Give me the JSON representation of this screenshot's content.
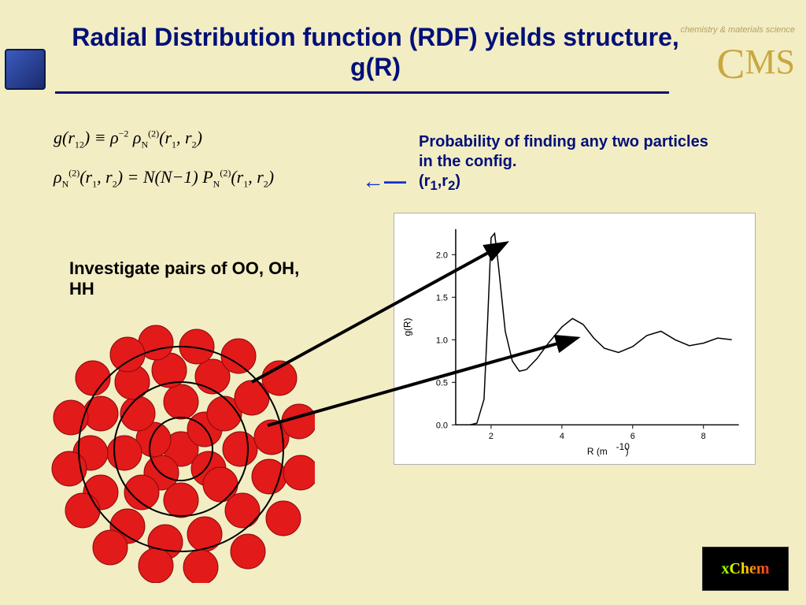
{
  "title": "Radial Distribution function (RDF) yields structure, g(R)",
  "logo_subtitle": "chemistry & materials science",
  "logo_main_c": "C",
  "logo_main_ms": "MS",
  "equation1": "g(r₁₂) ≡ ρ⁻² ρ_N^(2)(r₁, r₂)",
  "equation2": "ρ_N^(2)(r₁, r₂) = N(N−1) P_N^(2)(r₁, r₂)",
  "probability_text": "Probability of finding any two particles in the config.",
  "probability_vars": "(r₁, r₂)",
  "pairs_text": "Investigate pairs of OO, OH, HH",
  "xchem_label": "xChem",
  "chart": {
    "type": "line",
    "xlabel": "R (m⁻¹⁰)",
    "ylabel": "g(R)",
    "xlim": [
      1,
      9
    ],
    "ylim": [
      0,
      2.3
    ],
    "xticks": [
      2,
      4,
      6,
      8
    ],
    "yticks": [
      0.0,
      0.5,
      1.0,
      1.5,
      2.0
    ],
    "line_color": "#000000",
    "line_width": 1.5,
    "background_color": "#ffffff",
    "border_color": "#b0b0b0",
    "tick_fontsize": 11,
    "label_fontsize": 12,
    "data_x": [
      1.0,
      1.4,
      1.6,
      1.8,
      1.9,
      2.0,
      2.1,
      2.2,
      2.4,
      2.6,
      2.8,
      3.0,
      3.3,
      3.6,
      4.0,
      4.3,
      4.6,
      4.9,
      5.2,
      5.6,
      6.0,
      6.4,
      6.8,
      7.2,
      7.6,
      8.0,
      8.4,
      8.8
    ],
    "data_y": [
      0.0,
      0.0,
      0.02,
      0.3,
      1.2,
      2.2,
      2.25,
      1.9,
      1.1,
      0.75,
      0.63,
      0.65,
      0.78,
      0.95,
      1.15,
      1.25,
      1.18,
      1.02,
      0.9,
      0.85,
      0.92,
      1.05,
      1.1,
      1.0,
      0.93,
      0.96,
      1.02,
      1.0
    ]
  },
  "particle_diagram": {
    "shell_radii": [
      40,
      85,
      130
    ],
    "shell_stroke": "#000000",
    "shell_stroke_width": 2,
    "particle_radius": 22,
    "particle_fill": "#e21a1a",
    "particle_stroke": "#8a0a0a",
    "particles": [
      [
        170,
        170
      ],
      [
        200,
        145
      ],
      [
        145,
        200
      ],
      [
        135,
        158
      ],
      [
        205,
        195
      ],
      [
        170,
        110
      ],
      [
        225,
        125
      ],
      [
        245,
        170
      ],
      [
        220,
        215
      ],
      [
        170,
        235
      ],
      [
        120,
        225
      ],
      [
        98,
        175
      ],
      [
        115,
        125
      ],
      [
        155,
        70
      ],
      [
        210,
        78
      ],
      [
        260,
        105
      ],
      [
        285,
        155
      ],
      [
        282,
        205
      ],
      [
        248,
        248
      ],
      [
        200,
        278
      ],
      [
        150,
        288
      ],
      [
        102,
        268
      ],
      [
        68,
        225
      ],
      [
        55,
        175
      ],
      [
        68,
        125
      ],
      [
        108,
        85
      ],
      [
        138,
        35
      ],
      [
        190,
        40
      ],
      [
        243,
        52
      ],
      [
        295,
        80
      ],
      [
        320,
        135
      ],
      [
        322,
        200
      ],
      [
        300,
        258
      ],
      [
        255,
        300
      ],
      [
        195,
        320
      ],
      [
        138,
        318
      ],
      [
        80,
        295
      ],
      [
        45,
        248
      ],
      [
        28,
        195
      ],
      [
        30,
        130
      ],
      [
        58,
        80
      ],
      [
        102,
        50
      ]
    ]
  },
  "pointer_arrows": {
    "color": "#000000",
    "width": 4,
    "arrows": [
      {
        "from": [
          320,
          485
        ],
        "to": [
          640,
          310
        ]
      },
      {
        "from": [
          340,
          540
        ],
        "to": [
          730,
          430
        ]
      }
    ]
  },
  "blue_arrow": {
    "color": "#1030d0",
    "from": [
      520,
      232
    ],
    "to": [
      460,
      232
    ]
  }
}
